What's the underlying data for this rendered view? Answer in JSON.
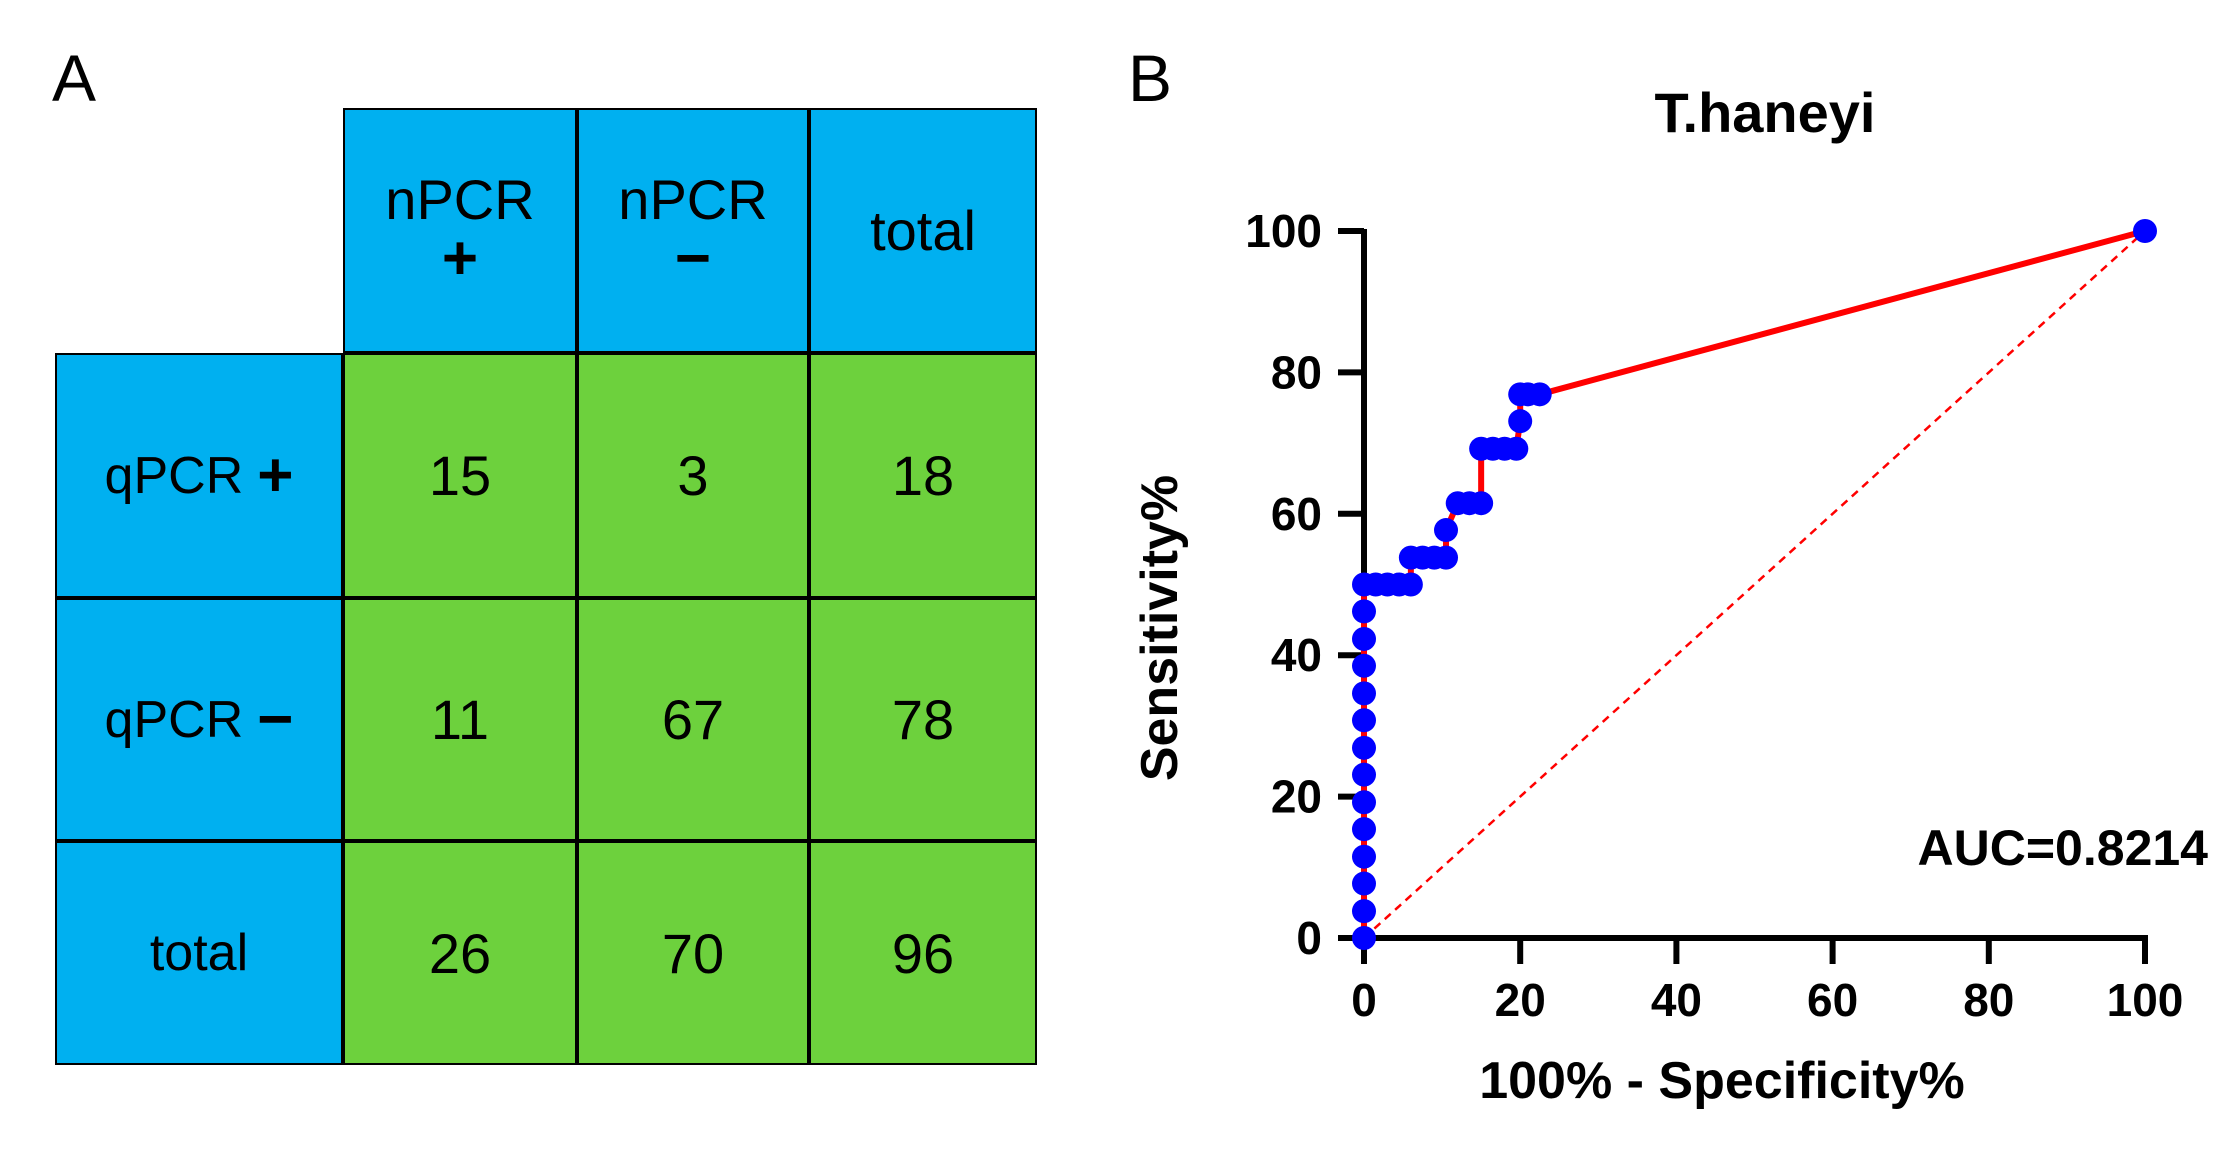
{
  "panel_a": {
    "letter": "A",
    "col_headers": [
      {
        "text": "nPCR",
        "sign": "+"
      },
      {
        "text": "nPCR",
        "sign": "−"
      },
      {
        "text": "total",
        "sign": ""
      }
    ],
    "rows": [
      {
        "label": "qPCR",
        "sign": "+",
        "values": [
          "15",
          "3",
          "18"
        ]
      },
      {
        "label": "qPCR",
        "sign": "−",
        "values": [
          "11",
          "67",
          "78"
        ]
      },
      {
        "label": "total",
        "sign": "",
        "values": [
          "26",
          "70",
          "96"
        ]
      }
    ],
    "colors": {
      "header": "#00b0f0",
      "body": "#6dd13d"
    }
  },
  "panel_b": {
    "letter": "B",
    "auc_text": "AUC=0.8214"
  },
  "chart_data": {
    "type": "line",
    "title": "T.haneyi",
    "xlabel": "100% - Specificity%",
    "ylabel": "Sensitivity%",
    "xlim": [
      0,
      100
    ],
    "ylim": [
      0,
      100
    ],
    "x_ticks": [
      "0",
      "20",
      "40",
      "60",
      "80",
      "100"
    ],
    "y_ticks": [
      "0",
      "20",
      "40",
      "60",
      "80",
      "100"
    ],
    "series": [
      {
        "color": "#ff0000",
        "marker_color": "#0000ff",
        "x": [
          0,
          0,
          0,
          0,
          0,
          0,
          0,
          0,
          0,
          0,
          0,
          0,
          0,
          0,
          1.5,
          3,
          4.5,
          6,
          6,
          7.5,
          9,
          10.5,
          10.5,
          12,
          13.5,
          15,
          15,
          16.5,
          18,
          19.5,
          20,
          20,
          21,
          22.5,
          100
        ],
        "y": [
          0,
          3.8,
          7.7,
          11.5,
          15.4,
          19.2,
          23.1,
          26.9,
          30.8,
          34.6,
          38.5,
          42.3,
          46.2,
          50,
          50,
          50,
          50,
          50,
          53.8,
          53.8,
          53.8,
          53.8,
          57.7,
          61.5,
          61.5,
          61.5,
          69.2,
          69.2,
          69.2,
          69.2,
          73.1,
          76.9,
          76.9,
          76.9,
          100
        ]
      }
    ],
    "reference_line": {
      "x": [
        0,
        100
      ],
      "y": [
        0,
        100
      ],
      "color": "#ff0000",
      "style": "dashed"
    },
    "annotation": "AUC=0.8214",
    "grid": false,
    "legend": "none"
  }
}
